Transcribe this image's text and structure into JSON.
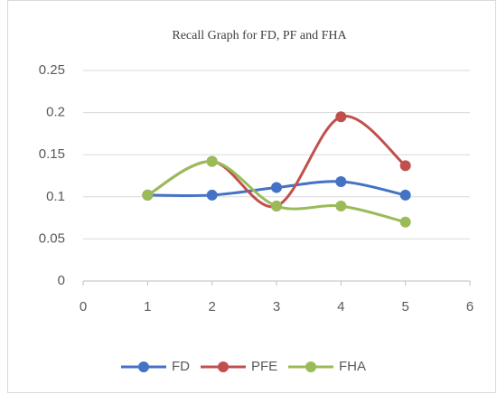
{
  "chart_data": {
    "type": "line",
    "title": "Recall Graph for FD, PF and FHA",
    "x": [
      1,
      2,
      3,
      4,
      5
    ],
    "series": [
      {
        "name": "FD",
        "color": "#4472c4",
        "values": [
          0.102,
          0.102,
          0.111,
          0.118,
          0.102
        ]
      },
      {
        "name": "PFE",
        "color": "#c0504d",
        "values": [
          0.102,
          0.142,
          0.089,
          0.195,
          0.137
        ]
      },
      {
        "name": "FHA",
        "color": "#9bbb59",
        "values": [
          0.102,
          0.142,
          0.089,
          0.089,
          0.07
        ]
      }
    ],
    "xlim": [
      0,
      6
    ],
    "xticks": [
      0,
      1,
      2,
      3,
      4,
      5,
      6
    ],
    "ylim": [
      0,
      0.25
    ],
    "yticks": [
      0,
      0.05,
      0.1,
      0.15,
      0.2,
      0.25
    ],
    "grid": true,
    "smooth": true,
    "legend": "bottom"
  }
}
